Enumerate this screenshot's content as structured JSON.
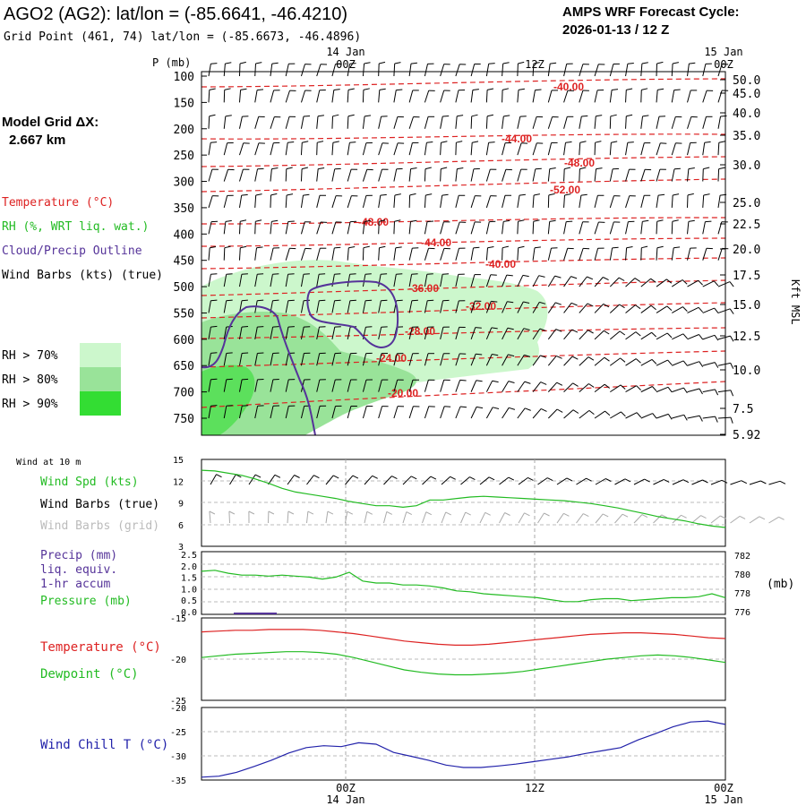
{
  "header": {
    "title": "AGO2 (AG2):  lat/lon = (-85.6641, -46.4210)",
    "subtitle": "Grid Point (461, 74) lat/lon = (-85.6673, -46.4896)",
    "cycle_line1": "AMPS WRF Forecast Cycle:",
    "cycle_line2": "2026-01-13 / 12  Z"
  },
  "model_grid": {
    "line1": "Model Grid ΔX:",
    "line2": "2.667 km"
  },
  "time_axis": {
    "top_dates": [
      "14 Jan",
      "15 Jan"
    ],
    "ticks": [
      "00Z",
      "12Z",
      "00Z"
    ],
    "bottom_dates": [
      "14 Jan",
      "15 Jan"
    ]
  },
  "legend": {
    "temperature": "Temperature (°C)",
    "rh": "RH (%, WRT liq. wat.)",
    "cloud": "Cloud/Precip Outline",
    "wind": "Wind Barbs (kts) (true)",
    "rh70": "RH > 70%",
    "rh80": "RH > 80%",
    "rh90": "RH > 90%",
    "colors": {
      "temperature": "#dd2222",
      "rh70": "#ccf7cc",
      "rh80": "#99e399",
      "rh90": "#33dd33",
      "cloud": "#553399"
    }
  },
  "panel_labels": {
    "p_unit": "P (mb)",
    "right_axis": "Kft MSL",
    "wind10": "Wind at 10 m",
    "wspd": "Wind Spd (kts)",
    "wbarbs_true": "Wind Barbs (true)",
    "wbarbs_grid": "Wind Barbs (grid)",
    "precip1": "Precip (mm)",
    "precip2": "liq. equiv.",
    "precip3": "1-hr accum",
    "pressure": "Pressure (mb)",
    "pressure_unit": "(mb)",
    "temp": "Temperature (°C)",
    "dew": "Dewpoint (°C)",
    "wchill": "Wind Chill T (°C)"
  },
  "chart_data": [
    {
      "type": "line",
      "panel": "vertical-profile",
      "y_left_label": "P (mb)",
      "y_right_label": "Kft MSL",
      "x_ticks": [
        "00Z",
        "12Z",
        "00Z"
      ],
      "pressure_levels": [
        100,
        150,
        200,
        250,
        300,
        350,
        400,
        450,
        500,
        550,
        600,
        650,
        700,
        750
      ],
      "height_levels_kft": [
        "50.0",
        "45.0",
        "40.0",
        "35.0",
        "30.0",
        "25.0",
        "22.5",
        "20.0",
        "17.5",
        "15.0",
        "12.5",
        "10.0",
        "7.5",
        "5.92"
      ],
      "temperature_contour_labels": [
        "-40.00",
        "-44.00",
        "-48.00",
        "-52.00",
        "-48.00",
        "-44.00",
        "-40.00",
        "-36.00",
        "-32.00",
        "-28.00",
        "-24.00",
        "-20.00"
      ]
    },
    {
      "type": "line",
      "panel": "wind-10m",
      "ylim": [
        3,
        15
      ],
      "y_ticks": [
        "15",
        "12",
        "9",
        "6",
        "3"
      ],
      "series": [
        {
          "name": "Wind Spd (kts)",
          "color": "#22bb22",
          "values": [
            13.5,
            13.4,
            13.1,
            12.8,
            12.3,
            11.7,
            11.0,
            10.5,
            10.2,
            9.9,
            9.6,
            9.2,
            8.9,
            8.6,
            8.6,
            8.4,
            8.6,
            9.4,
            9.4,
            9.6,
            9.8,
            9.9,
            9.8,
            9.7,
            9.6,
            9.5,
            9.4,
            9.3,
            9.1,
            8.9,
            8.6,
            8.3,
            7.9,
            7.5,
            7.1,
            6.8,
            6.5,
            6.1,
            5.8,
            5.6
          ]
        }
      ]
    },
    {
      "type": "line",
      "panel": "precip-pressure",
      "precip_ylim": [
        0,
        2.5
      ],
      "precip_ticks": [
        "2.5",
        "2.0",
        "1.5",
        "1.0",
        "0.5",
        "0.0"
      ],
      "pressure_ylim": [
        775.6,
        782
      ],
      "pressure_ticks": [
        "782",
        "780",
        "778",
        "776"
      ],
      "series": [
        {
          "name": "Pressure (mb)",
          "color": "#22bb22",
          "values": [
            780.0,
            780.1,
            779.8,
            779.6,
            779.6,
            779.5,
            779.6,
            779.5,
            779.4,
            779.2,
            779.4,
            779.9,
            779.0,
            778.8,
            778.8,
            778.6,
            778.6,
            778.5,
            778.3,
            778.0,
            777.9,
            777.7,
            777.6,
            777.5,
            777.4,
            777.3,
            777.1,
            776.9,
            776.9,
            777.1,
            777.2,
            777.2,
            777.0,
            777.1,
            777.2,
            777.3,
            777.3,
            777.4,
            777.7,
            777.3
          ]
        },
        {
          "name": "Precip (mm)",
          "color": "#553399",
          "values": [
            0,
            0,
            0,
            0,
            0,
            0,
            0,
            0,
            0,
            0,
            0,
            0,
            0,
            0,
            0,
            0,
            0,
            0,
            0,
            0,
            0,
            0,
            0,
            0,
            0,
            0,
            0,
            0,
            0,
            0,
            0,
            0,
            0,
            0,
            0,
            0,
            0,
            0,
            0,
            0
          ]
        }
      ]
    },
    {
      "type": "line",
      "panel": "temperature-dewpoint",
      "ylim": [
        -25,
        -15
      ],
      "y_ticks": [
        "-15",
        "-20",
        "-25"
      ],
      "series": [
        {
          "name": "Temperature (°C)",
          "color": "#dd2222",
          "values": [
            -16.7,
            -16.6,
            -16.5,
            -16.5,
            -16.4,
            -16.4,
            -16.4,
            -16.5,
            -16.7,
            -16.9,
            -17.2,
            -17.5,
            -17.8,
            -18.0,
            -18.2,
            -18.3,
            -18.3,
            -18.2,
            -18.0,
            -17.8,
            -17.6,
            -17.4,
            -17.2,
            -17.0,
            -16.9,
            -16.8,
            -16.8,
            -16.9,
            -17.0,
            -17.2,
            -17.4,
            -17.5
          ]
        },
        {
          "name": "Dewpoint (°C)",
          "color": "#22bb22",
          "values": [
            -19.8,
            -19.6,
            -19.4,
            -19.3,
            -19.2,
            -19.1,
            -19.1,
            -19.2,
            -19.4,
            -19.8,
            -20.3,
            -20.8,
            -21.3,
            -21.6,
            -21.8,
            -21.9,
            -21.9,
            -21.8,
            -21.7,
            -21.5,
            -21.2,
            -20.9,
            -20.6,
            -20.3,
            -20.0,
            -19.8,
            -19.6,
            -19.5,
            -19.6,
            -19.8,
            -20.1,
            -20.4
          ]
        }
      ]
    },
    {
      "type": "line",
      "panel": "wind-chill",
      "ylim": [
        -35,
        -20
      ],
      "y_ticks": [
        "-20",
        "-25",
        "-30",
        "-35"
      ],
      "series": [
        {
          "name": "Wind Chill T (°C)",
          "color": "#2222aa",
          "values": [
            -34.4,
            -34.2,
            -33.4,
            -32.2,
            -30.9,
            -29.4,
            -28.3,
            -27.9,
            -28.1,
            -27.3,
            -27.6,
            -29.3,
            -30.1,
            -30.9,
            -31.9,
            -32.4,
            -32.4,
            -32.1,
            -31.7,
            -31.2,
            -30.7,
            -30.2,
            -29.5,
            -28.9,
            -28.3,
            -26.7,
            -25.4,
            -24.0,
            -23.0,
            -22.8,
            -23.5
          ]
        }
      ]
    }
  ]
}
